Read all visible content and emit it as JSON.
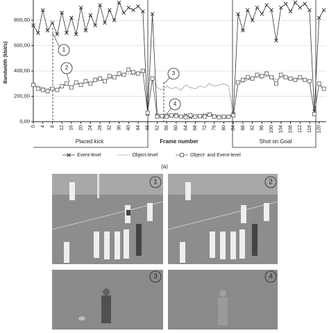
{
  "chart_data": {
    "type": "line",
    "y_label": "Bandwidth (kbit/s)",
    "x_label": "Frame number",
    "x": [
      0,
      2,
      4,
      6,
      8,
      10,
      12,
      14,
      16,
      18,
      20,
      22,
      24,
      26,
      28,
      30,
      32,
      34,
      36,
      38,
      40,
      42,
      44,
      46,
      48,
      50,
      52,
      54,
      56,
      58,
      60,
      62,
      64,
      66,
      68,
      70,
      72,
      74,
      76,
      78,
      80,
      82,
      84,
      86,
      88,
      90,
      92,
      94,
      96,
      98,
      100,
      102,
      104,
      106,
      108,
      110,
      112,
      114,
      116,
      118,
      120,
      122
    ],
    "series": [
      {
        "name": "Event-level",
        "color": "#333333",
        "marker": "x",
        "dash": "solid",
        "values": [
          760,
          700,
          880,
          720,
          780,
          690,
          860,
          700,
          820,
          690,
          900,
          720,
          840,
          760,
          920,
          780,
          880,
          800,
          940,
          860,
          900,
          880,
          910,
          870,
          60,
          850,
          50,
          40,
          50,
          45,
          55,
          40,
          50,
          35,
          45,
          40,
          50,
          60,
          45,
          40,
          35,
          40,
          60,
          850,
          720,
          880,
          800,
          900,
          850,
          920,
          880,
          640,
          900,
          930,
          870,
          940,
          900,
          930,
          880,
          80,
          820,
          880
        ]
      },
      {
        "name": "Object-level",
        "color": "#333333",
        "marker": "none",
        "dash": "dotted",
        "values": [
          300,
          280,
          270,
          260,
          270,
          260,
          280,
          290,
          280,
          300,
          290,
          310,
          300,
          320,
          330,
          320,
          340,
          350,
          360,
          370,
          380,
          370,
          380,
          390,
          80,
          330,
          270,
          250,
          280,
          260,
          270,
          250,
          290,
          270,
          260,
          280,
          270,
          300,
          280,
          290,
          300,
          280,
          60,
          300,
          310,
          330,
          340,
          350,
          340,
          360,
          350,
          330,
          350,
          340,
          330,
          320,
          340,
          320,
          310,
          70,
          290,
          250
        ]
      },
      {
        "name": "Object- and Event-level",
        "color": "#555555",
        "marker": "square",
        "dash": "solid",
        "values": [
          290,
          260,
          250,
          240,
          260,
          250,
          280,
          300,
          270,
          310,
          290,
          320,
          300,
          330,
          340,
          320,
          360,
          350,
          380,
          370,
          410,
          390,
          380,
          400,
          70,
          340,
          40,
          45,
          40,
          50,
          45,
          40,
          35,
          50,
          40,
          45,
          40,
          55,
          40,
          35,
          40,
          38,
          50,
          310,
          330,
          350,
          340,
          370,
          360,
          380,
          350,
          300,
          370,
          350,
          340,
          330,
          350,
          330,
          320,
          60,
          300,
          260
        ]
      }
    ],
    "xlim": [
      0,
      123
    ],
    "xticks": [
      0,
      4,
      8,
      12,
      16,
      20,
      24,
      28,
      32,
      36,
      40,
      44,
      48,
      52,
      56,
      60,
      64,
      68,
      72,
      76,
      80,
      84,
      88,
      92,
      96,
      100,
      104,
      108,
      112,
      116,
      120
    ],
    "ylim": [
      0,
      960
    ],
    "yticks": [
      {
        "value": 0,
        "label": "0,00"
      },
      {
        "value": 200,
        "label": "200,00"
      },
      {
        "value": 400,
        "label": "400,00"
      },
      {
        "value": 600,
        "label": "600,00"
      },
      {
        "value": 800,
        "label": "800,00"
      }
    ],
    "grid": true,
    "spans": [
      "Placed kick",
      "Shot on Goal"
    ],
    "callouts": [
      "1",
      "2",
      "3",
      "4"
    ],
    "caption": "(a)"
  },
  "panels": [
    "1",
    "2",
    "3",
    "4"
  ]
}
